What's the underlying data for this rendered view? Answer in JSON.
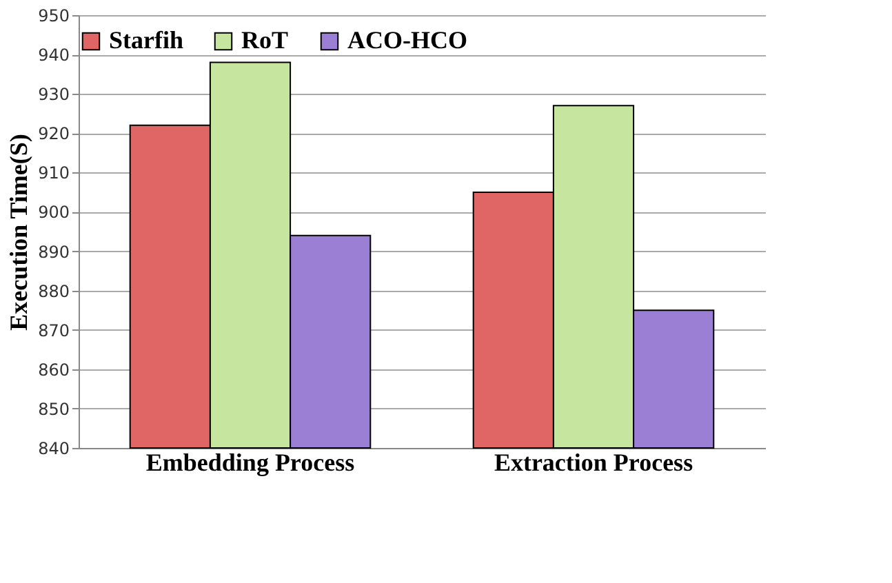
{
  "chart_data": {
    "type": "bar",
    "ylabel": "Execution Time(S)",
    "categories": [
      "Embedding Process",
      "Extraction Process"
    ],
    "series": [
      {
        "name": "Starfih",
        "color": "#e06666",
        "values": [
          922,
          905
        ]
      },
      {
        "name": "RoT",
        "color": "#c6e6a0",
        "values": [
          938,
          927
        ]
      },
      {
        "name": "ACO-HCO",
        "color": "#9b7fd4",
        "values": [
          894,
          875
        ]
      }
    ],
    "ylim": [
      840,
      950
    ],
    "yticks": [
      840,
      850,
      860,
      870,
      880,
      890,
      900,
      910,
      920,
      930,
      940,
      950
    ],
    "grid": "y",
    "legend": "top"
  }
}
